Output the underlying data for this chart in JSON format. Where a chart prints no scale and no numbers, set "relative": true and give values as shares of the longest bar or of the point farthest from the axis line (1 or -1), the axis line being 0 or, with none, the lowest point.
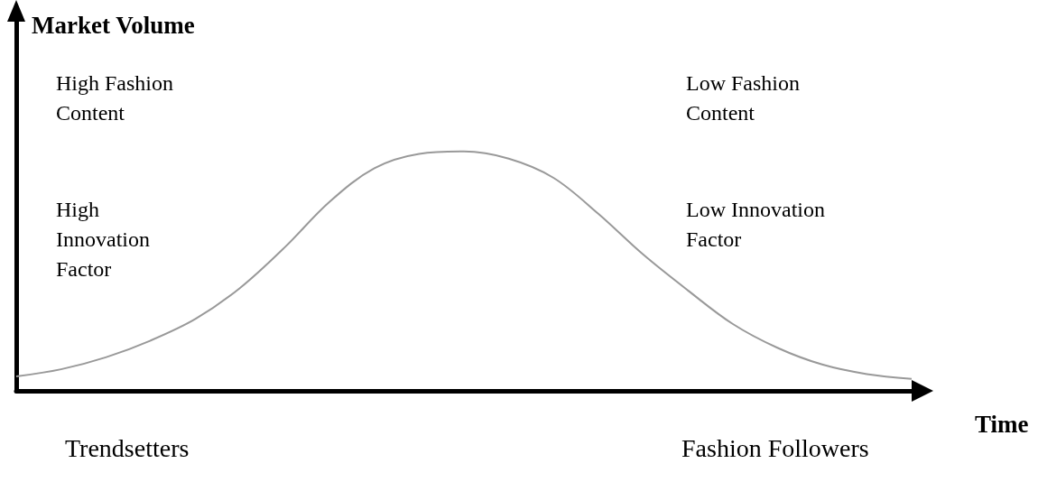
{
  "chart_data": {
    "type": "line",
    "relative": true,
    "ylabel": "Market Volume",
    "xlabel": "Time",
    "categories": [
      null,
      null,
      null,
      null,
      null,
      null,
      null,
      null,
      null,
      null,
      null,
      null,
      null,
      null,
      null,
      null,
      null,
      null,
      null,
      null,
      null
    ],
    "series": [
      {
        "color": "#999999",
        "values": [
          0.06,
          0.09,
          0.14,
          0.21,
          0.3,
          0.43,
          0.6,
          0.79,
          0.93,
          0.99,
          1,
          0.97,
          0.89,
          0.74,
          0.57,
          0.42,
          0.28,
          0.18,
          0.11,
          0.07,
          0.05
        ]
      }
    ],
    "marker": "none",
    "grid": false,
    "annotations": [
      "High Fashion Content",
      "High Innovation Factor",
      "Low Fashion Content",
      "Low Innovation Factor",
      "Trendsetters",
      "Fashion Followers"
    ]
  }
}
